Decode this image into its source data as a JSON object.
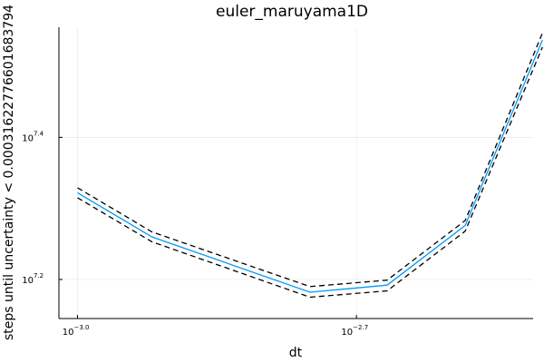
{
  "chart_data": {
    "type": "line",
    "title": "euler_maruyama1D",
    "xlabel": "dt",
    "ylabel": "steps until uncertainty < 0.00031622776601683794",
    "x_scale": "log10",
    "y_scale": "log10",
    "xlim_log10": [
      -3.02,
      -2.51
    ],
    "ylim_log10": [
      7.145,
      7.555
    ],
    "grid": true,
    "legend": "none",
    "x_ticks": [
      {
        "base": "10",
        "exp": "−3.0",
        "log10": -3.0
      },
      {
        "base": "10",
        "exp": "−2.7",
        "log10": -2.7
      }
    ],
    "y_ticks": [
      {
        "base": "10",
        "exp": "7.2",
        "log10": 7.2
      },
      {
        "base": "10",
        "exp": "7.4",
        "log10": 7.4
      }
    ],
    "x_log10": [
      -3.0,
      -2.92,
      -2.75,
      -2.667,
      -2.583,
      -2.5
    ],
    "series": [
      {
        "y_log10": [
          7.322,
          7.26,
          7.182,
          7.192,
          7.276,
          7.537
        ],
        "color": "#009af9",
        "dash": "solid"
      },
      {
        "y_log10": [
          7.329,
          7.267,
          7.19,
          7.199,
          7.283,
          7.547
        ],
        "color": "#000000",
        "dash": "dashed"
      },
      {
        "y_log10": [
          7.315,
          7.253,
          7.175,
          7.184,
          7.268,
          7.527
        ],
        "color": "#000000",
        "dash": "dashed"
      }
    ]
  }
}
